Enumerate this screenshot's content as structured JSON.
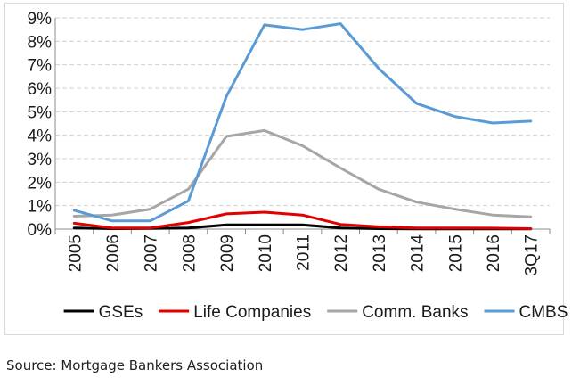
{
  "chart_data": {
    "type": "line",
    "categories": [
      "2005",
      "2006",
      "2007",
      "2008",
      "2009",
      "2010",
      "2011",
      "2012",
      "2013",
      "2014",
      "2015",
      "2016",
      "3Q17"
    ],
    "ylim": [
      0,
      9
    ],
    "yticks": [
      0,
      1,
      2,
      3,
      4,
      5,
      6,
      7,
      8,
      9
    ],
    "ytick_suffix": "%",
    "grid": "horizontal dashed",
    "legend_position": "bottom",
    "series": [
      {
        "name": "GSEs",
        "color": "#000000",
        "values": [
          0.05,
          0.02,
          0.03,
          0.05,
          0.18,
          0.18,
          0.18,
          0.05,
          0.02,
          0.01,
          0.01,
          0.01,
          0.01
        ]
      },
      {
        "name": "Life Companies",
        "color": "#e00000",
        "values": [
          0.25,
          0.05,
          0.05,
          0.28,
          0.65,
          0.72,
          0.6,
          0.2,
          0.1,
          0.05,
          0.05,
          0.04,
          0.02
        ]
      },
      {
        "name": "Comm. Banks",
        "color": "#a6a6a6",
        "values": [
          0.55,
          0.6,
          0.85,
          1.7,
          3.95,
          4.2,
          3.55,
          2.6,
          1.7,
          1.15,
          0.85,
          0.6,
          0.52
        ]
      },
      {
        "name": "CMBS",
        "color": "#5b9bd5",
        "values": [
          0.8,
          0.35,
          0.35,
          1.2,
          5.65,
          8.7,
          8.5,
          8.75,
          6.85,
          5.35,
          4.8,
          4.52,
          4.6
        ]
      }
    ]
  },
  "source_note": "Source: Mortgage Bankers Association"
}
